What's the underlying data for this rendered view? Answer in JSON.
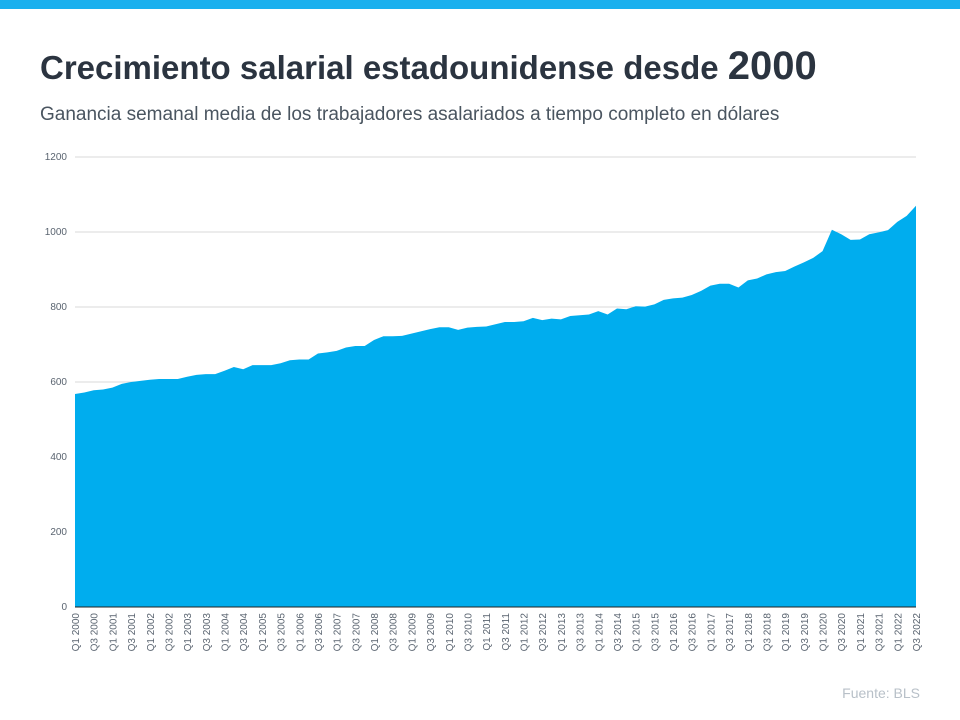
{
  "header": {
    "title": "Crecimiento salarial estadounidense desde",
    "title_year": "2000",
    "subtitle": "Ganancia semanal media de los trabajadores asalariados a tiempo completo en dólares"
  },
  "source": "Fuente:  BLS",
  "colors": {
    "top_bar": "#1ab0ee",
    "area": "#00adee",
    "grid": "#d9d9d9"
  },
  "chart_data": {
    "type": "area",
    "title": "Crecimiento salarial estadounidense desde 2000",
    "subtitle": "Ganancia semanal media de los trabajadores asalariados a tiempo completo en dólares",
    "ylim": [
      0,
      1200
    ],
    "yticks": [
      0,
      200,
      400,
      600,
      800,
      1000,
      1200
    ],
    "grid": true,
    "x_start": "Q1 2000",
    "x_end": "Q3 2022",
    "x_tick_labels": [
      "Q1 2000",
      "Q3 2000",
      "Q1 2001",
      "Q3 2001",
      "Q1 2002",
      "Q3 2002",
      "Q1 2003",
      "Q3 2003",
      "Q1 2004",
      "Q3 2004",
      "Q1 2005",
      "Q3 2005",
      "Q1 2006",
      "Q3 2006",
      "Q1 2007",
      "Q3 2007",
      "Q1 2008",
      "Q3 2008",
      "Q1 2009",
      "Q3 2009",
      "Q1 2010",
      "Q3 2010",
      "Q1 2011",
      "Q3 2011",
      "Q1 2012",
      "Q3 2012",
      "Q1 2013",
      "Q3 2013",
      "Q1 2014",
      "Q3 2014",
      "Q1 2015",
      "Q3 2015",
      "Q1 2016",
      "Q3 2016",
      "Q1 2017",
      "Q3 2017",
      "Q1 2018",
      "Q3 2018",
      "Q1 2019",
      "Q3 2019",
      "Q1 2020",
      "Q3 2020",
      "Q1 2021",
      "Q3 2021",
      "Q1 2022",
      "Q3 2022"
    ],
    "values": [
      568,
      572,
      578,
      580,
      585,
      595,
      600,
      603,
      606,
      608,
      608,
      608,
      614,
      619,
      621,
      621,
      630,
      640,
      634,
      645,
      645,
      645,
      650,
      658,
      660,
      660,
      676,
      679,
      683,
      692,
      696,
      696,
      712,
      722,
      722,
      723,
      729,
      735,
      741,
      746,
      746,
      739,
      745,
      747,
      748,
      754,
      760,
      760,
      762,
      771,
      765,
      769,
      767,
      776,
      778,
      780,
      789,
      780,
      796,
      794,
      802,
      801,
      807,
      819,
      823,
      825,
      832,
      843,
      857,
      862,
      862,
      852,
      871,
      876,
      887,
      893,
      896,
      908,
      919,
      931,
      949,
      1006,
      994,
      979,
      980,
      994,
      999,
      1005,
      1027,
      1043,
      1070
    ]
  }
}
